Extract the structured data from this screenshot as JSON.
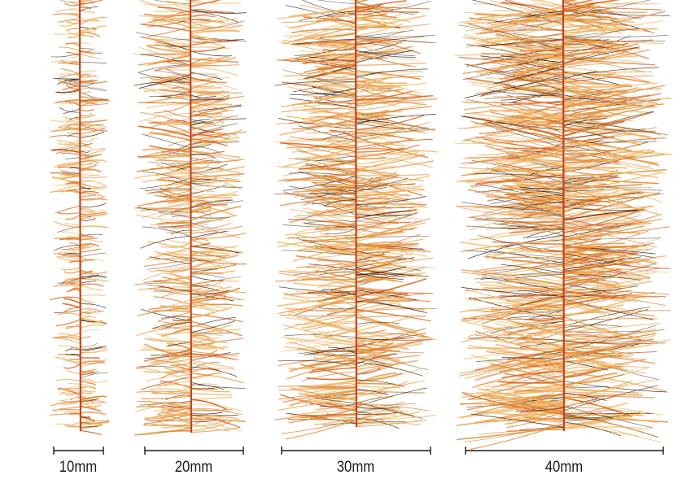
{
  "colors": {
    "background": "#ffffff",
    "core": "#c0461c",
    "fiber_light": "#f0b25a",
    "fiber_mid": "#e48a32",
    "fiber_orange": "#d4611c",
    "fiber_dark": "#2a1a12",
    "scale_line": "#1a1a1a"
  },
  "samples": [
    {
      "label": "10mm",
      "size_mm": 10
    },
    {
      "label": "20mm",
      "size_mm": 20
    },
    {
      "label": "30mm",
      "size_mm": 30
    },
    {
      "label": "40mm",
      "size_mm": 40
    }
  ]
}
